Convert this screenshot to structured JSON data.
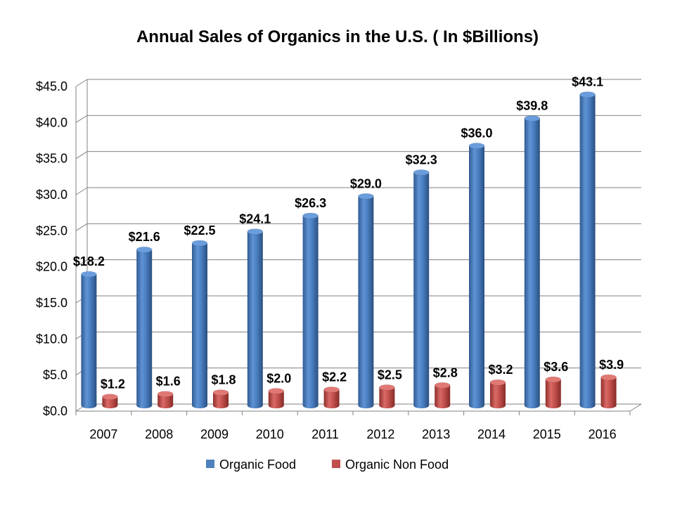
{
  "chart_data": {
    "type": "bar",
    "title": "Annual Sales of Organics in the U.S. ( In $Billions)",
    "categories": [
      "2007",
      "2008",
      "2009",
      "2010",
      "2011",
      "2012",
      "2013",
      "2014",
      "2015",
      "2016"
    ],
    "series": [
      {
        "name": "Organic Food",
        "color": "#4F81BD",
        "values": [
          18.2,
          21.6,
          22.5,
          24.1,
          26.3,
          29.0,
          32.3,
          36.0,
          39.8,
          43.1
        ],
        "labels": [
          "$18.2",
          "$21.6",
          "$22.5",
          "$24.1",
          "$26.3",
          "$29.0",
          "$32.3",
          "$36.0",
          "$39.8",
          "$43.1"
        ]
      },
      {
        "name": "Organic Non Food",
        "color": "#C0504D",
        "values": [
          1.2,
          1.6,
          1.8,
          2.0,
          2.2,
          2.5,
          2.8,
          3.2,
          3.6,
          3.9
        ],
        "labels": [
          "$1.2",
          "$1.6",
          "$1.8",
          "$2.0",
          "$2.2",
          "$2.5",
          "$2.8",
          "$3.2",
          "$3.6",
          "$3.9"
        ]
      }
    ],
    "ylim": [
      0,
      45
    ],
    "yticks": [
      "$0.0",
      "$5.0",
      "$10.0",
      "$15.0",
      "$20.0",
      "$25.0",
      "$30.0",
      "$35.0",
      "$40.0",
      "$45.0"
    ],
    "grid": true,
    "legend": "bottom"
  }
}
